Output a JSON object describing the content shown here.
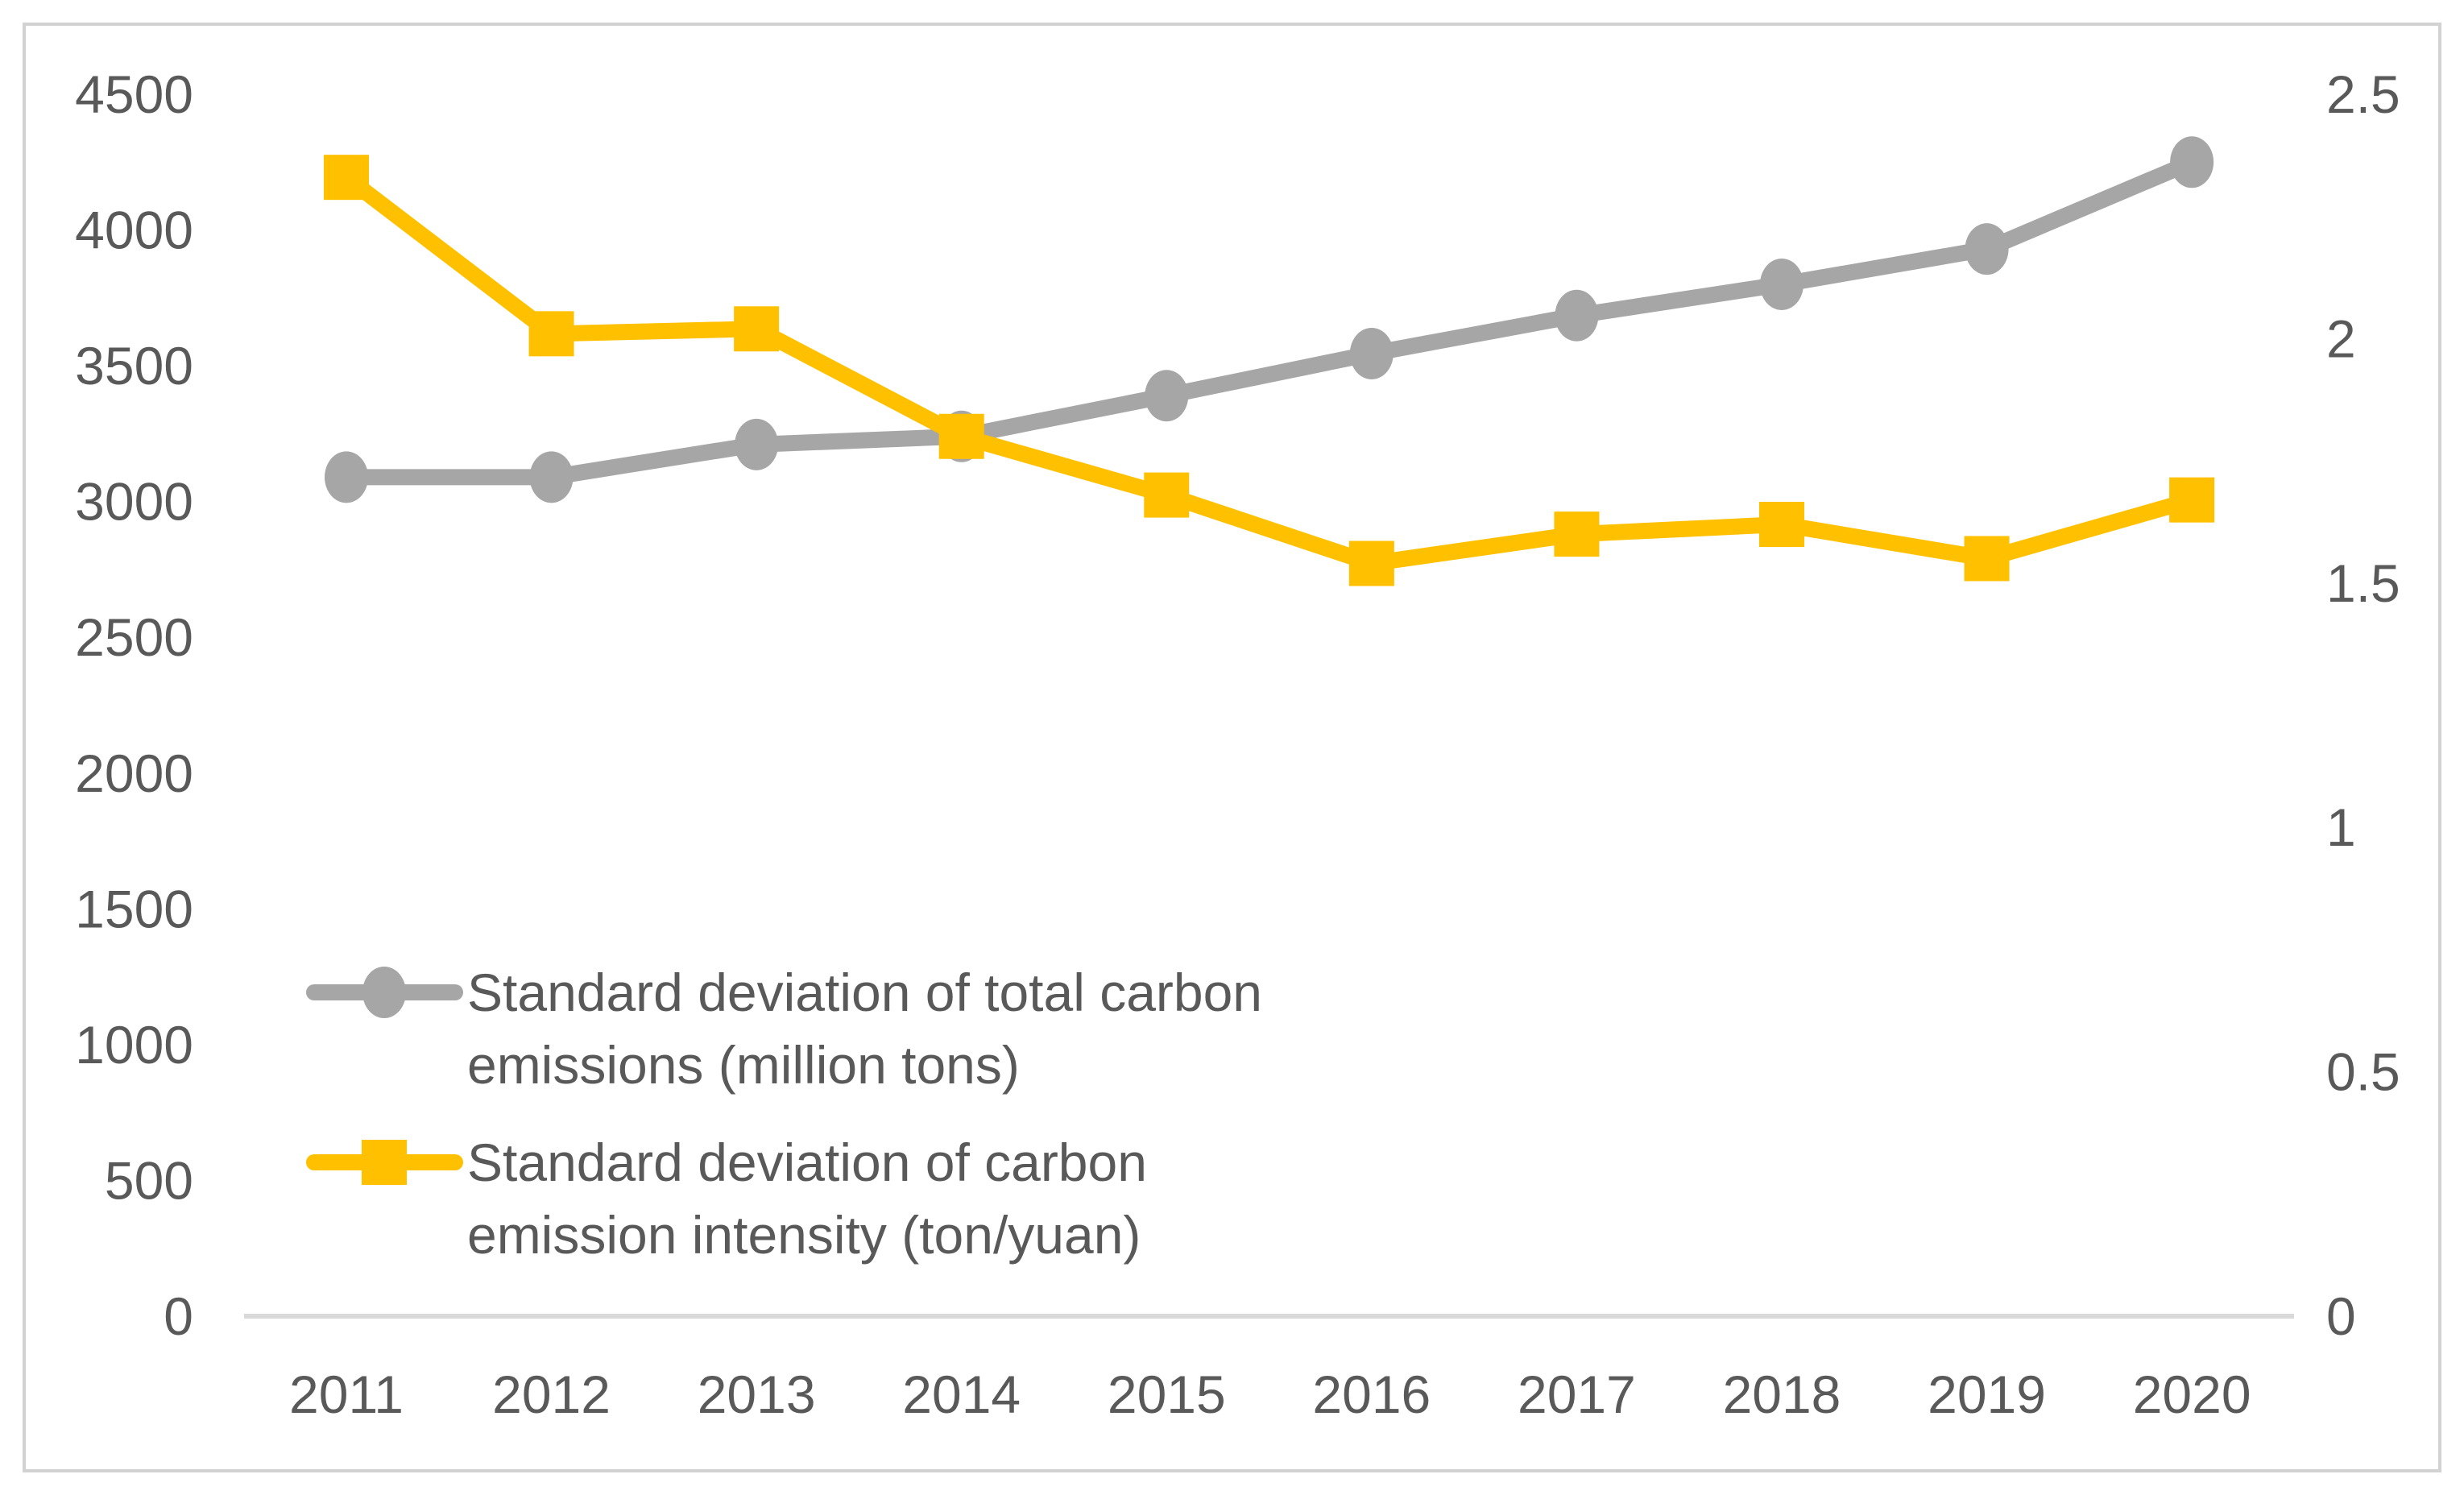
{
  "chart_data": {
    "type": "line",
    "title": "",
    "categories": [
      "2011",
      "2012",
      "2013",
      "2014",
      "2015",
      "2016",
      "2017",
      "2018",
      "2019",
      "2020"
    ],
    "series": [
      {
        "name": "Standard deviation of total carbon emissions (million tons)",
        "axis": "left",
        "marker": "circle",
        "color": "#a6a6a6",
        "values": [
          3090,
          3090,
          3210,
          3240,
          3390,
          3545,
          3685,
          3800,
          3930,
          4250
        ]
      },
      {
        "name": "Standard deviation of carbon emission intensity (ton/yuan)",
        "axis": "right",
        "marker": "square",
        "color": "#ffc000",
        "values": [
          2.33,
          2.01,
          2.02,
          1.8,
          1.68,
          1.54,
          1.6,
          1.62,
          1.55,
          1.67
        ]
      }
    ],
    "left_axis": {
      "min": 0,
      "max": 4500,
      "step": 500,
      "labels": [
        "0",
        "500",
        "1000",
        "1500",
        "2000",
        "2500",
        "3000",
        "3500",
        "4000",
        "4500"
      ]
    },
    "right_axis": {
      "min": 0,
      "max": 2.5,
      "step": 0.5,
      "labels": [
        "0",
        "0.5",
        "1",
        "1.5",
        "2",
        "2.5"
      ]
    },
    "grid": false,
    "legend": {
      "position": "inside-bottom-left",
      "entries": [
        {
          "lines": [
            "Standard deviation of total carbon",
            "emissions (million tons)"
          ]
        },
        {
          "lines": [
            "Standard deviation of carbon",
            "emission intensity (ton/yuan)"
          ]
        }
      ]
    },
    "colors": {
      "text": "#595959",
      "axis_line": "#d9d9d9",
      "figure_border": "#d2d2d2",
      "background": "#ffffff"
    }
  }
}
